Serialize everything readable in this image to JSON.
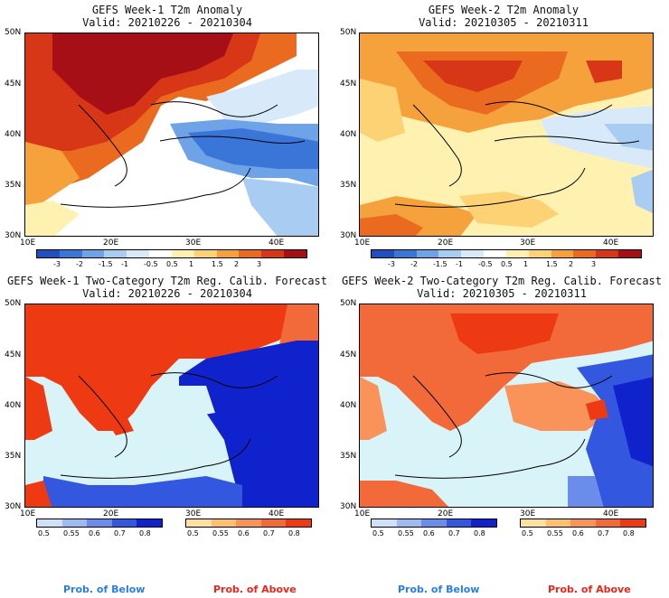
{
  "panels": [
    {
      "title": "GEFS Week-1 T2m Anomaly",
      "valid": "Valid: 20210226 - 20210304"
    },
    {
      "title": "GEFS Week-2 T2m Anomaly",
      "valid": "Valid: 20210305 - 20210311"
    },
    {
      "title": "GEFS Week-1 Two-Category T2m Reg. Calib. Forecast",
      "valid": "Valid: 20210226 - 20210304"
    },
    {
      "title": "GEFS Week-2 Two-Category T2m Reg. Calib. Forecast",
      "valid": "Valid: 20210305 - 20210311"
    }
  ],
  "axes": {
    "lat_labels": [
      "50N",
      "45N",
      "40N",
      "35N",
      "30N"
    ],
    "lon_labels": [
      "10E",
      "20E",
      "30E",
      "40E"
    ]
  },
  "anomaly_colorbar": {
    "ticks": [
      "-3",
      "-2",
      "-1.5",
      "-1",
      "-0.5",
      "0.5",
      "1",
      "1.5",
      "2",
      "3"
    ],
    "colors": [
      "#1f4fc0",
      "#3a75d8",
      "#6fa3e8",
      "#a8ccf2",
      "#d8eafa",
      "#ffffff",
      "#fff2b0",
      "#fdd275",
      "#f6a23c",
      "#ea6a1f",
      "#d73617",
      "#a50f15"
    ]
  },
  "prob_colorbar_below": {
    "ticks": [
      "0.5",
      "0.55",
      "0.6",
      "0.7",
      "0.8"
    ],
    "colors": [
      "#cfe0fb",
      "#9ebaf3",
      "#6b8ceb",
      "#3457e0",
      "#0f22cc"
    ]
  },
  "prob_colorbar_above": {
    "ticks": [
      "0.5",
      "0.55",
      "0.6",
      "0.7",
      "0.8"
    ],
    "colors": [
      "#ffe0a0",
      "#fdc070",
      "#f9935a",
      "#f26a3a",
      "#ee3a12"
    ]
  },
  "legend": {
    "below": "Prob. of Below",
    "above": "Prob. of Above"
  },
  "chart_data": [
    {
      "type": "heatmap",
      "title": "GEFS Week-1 T2m Anomaly",
      "subtitle": "Valid: 20210226 - 20210304",
      "xlim": [
        10,
        46
      ],
      "ylim": [
        30,
        50
      ]
    },
    {
      "type": "heatmap",
      "title": "GEFS Week-2 T2m Anomaly",
      "subtitle": "Valid: 20210305 - 20210311",
      "xlim": [
        10,
        46
      ],
      "ylim": [
        30,
        50
      ]
    },
    {
      "type": "heatmap",
      "title": "GEFS Week-1 Two-Category T2m Reg. Calib. Forecast",
      "subtitle": "Valid: 20210226 - 20210304",
      "xlim": [
        10,
        46
      ],
      "ylim": [
        30,
        50
      ]
    },
    {
      "type": "heatmap",
      "title": "GEFS Week-2 Two-Category T2m Reg. Calib. Forecast",
      "subtitle": "Valid: 20210305 - 20210311",
      "xlim": [
        10,
        46
      ],
      "ylim": [
        30,
        50
      ]
    }
  ]
}
